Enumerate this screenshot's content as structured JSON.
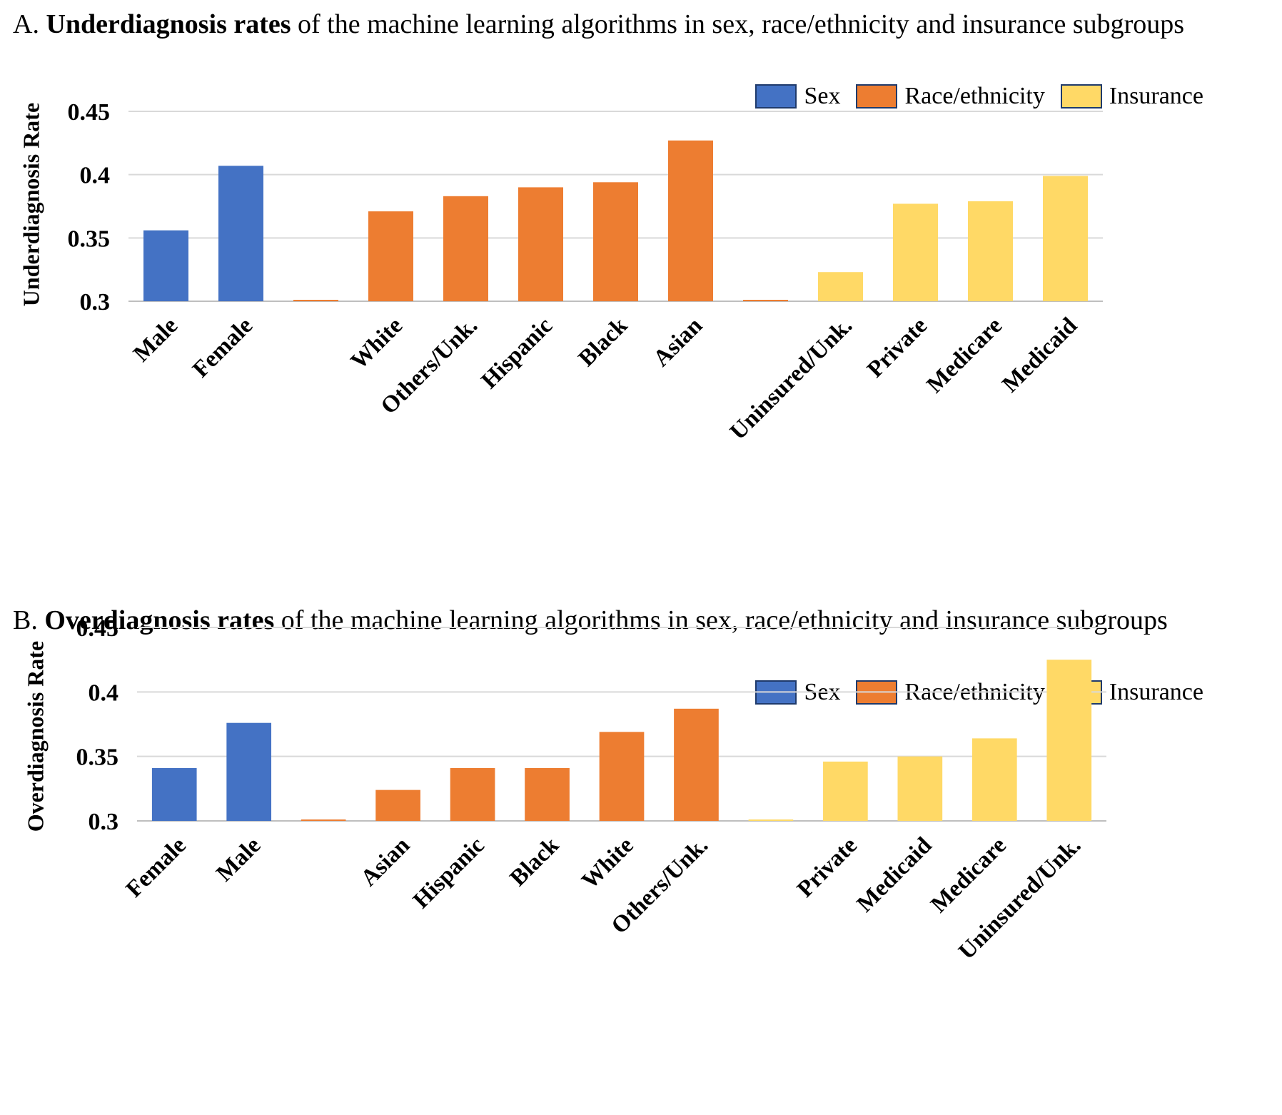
{
  "legend": {
    "items": [
      {
        "label": "Sex",
        "color": "#4472C4"
      },
      {
        "label": "Race/ethnicity",
        "color": "#ED7D31"
      },
      {
        "label": "Insurance",
        "color": "#FFD966"
      }
    ]
  },
  "panel_a": {
    "title_prefix": "A. ",
    "title_bold": "Underdiagnosis rates",
    "title_rest": " of the machine learning algorithms in sex, race/ethnicity and insurance subgroups"
  },
  "panel_b": {
    "title_prefix": "B. ",
    "title_bold": "Overdiagnosis rates",
    "title_rest": " of the machine learning algorithms in sex, race/ethnicity and insurance subgroups"
  },
  "chart_data": [
    {
      "type": "bar",
      "ylabel": "Underdiagnosis Rate",
      "ylim": [
        0.3,
        0.45
      ],
      "yticks": [
        "0.3",
        "0.35",
        "0.4",
        "0.45"
      ],
      "grid": true,
      "legend_position": "top-right",
      "categories": [
        "Male",
        "Female",
        "",
        "White",
        "Others/Unk.",
        "Hispanic",
        "Black",
        "Asian",
        "",
        "Uninsured/Unk.",
        "Private",
        "Medicare",
        "Medicaid"
      ],
      "groups": [
        "Sex",
        "Sex",
        "Race/ethnicity",
        "Race/ethnicity",
        "Race/ethnicity",
        "Race/ethnicity",
        "Race/ethnicity",
        "Race/ethnicity",
        "Race/ethnicity",
        "Insurance",
        "Insurance",
        "Insurance",
        "Insurance"
      ],
      "values": [
        0.356,
        0.407,
        0.3,
        0.371,
        0.383,
        0.39,
        0.394,
        0.427,
        0.3,
        0.323,
        0.377,
        0.379,
        0.399
      ]
    },
    {
      "type": "bar",
      "ylabel": "Overdiagnosis Rate",
      "ylim": [
        0.3,
        0.45
      ],
      "yticks": [
        "0.3",
        "0.35",
        "0.4",
        "0.45"
      ],
      "grid": true,
      "legend_position": "top-right",
      "categories": [
        "Female",
        "Male",
        "",
        "Asian",
        "Hispanic",
        "Black",
        "White",
        "Others/Unk.",
        "",
        "Private",
        "Medicaid",
        "Medicare",
        "Uninsured/Unk."
      ],
      "groups": [
        "Sex",
        "Sex",
        "Race/ethnicity",
        "Race/ethnicity",
        "Race/ethnicity",
        "Race/ethnicity",
        "Race/ethnicity",
        "Race/ethnicity",
        "Insurance",
        "Insurance",
        "Insurance",
        "Insurance",
        "Insurance"
      ],
      "values": [
        0.341,
        0.376,
        0.3,
        0.324,
        0.341,
        0.341,
        0.369,
        0.387,
        0.3,
        0.346,
        0.35,
        0.364,
        0.425
      ]
    }
  ]
}
